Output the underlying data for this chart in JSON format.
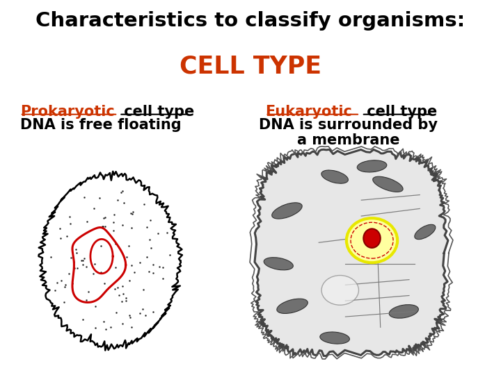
{
  "title_line1": "Characteristics to classify organisms:",
  "title_line2": "CELL TYPE",
  "title_color": "#000000",
  "subtitle_color": "#CC3300",
  "left_heading_orange": "Prokaryotic",
  "left_heading_black": " cell type",
  "left_subtext": "DNA is free floating",
  "right_heading_orange": "Eukaryotic",
  "right_heading_black": " cell type",
  "right_subtext_line1": "DNA is surrounded by",
  "right_subtext_line2": "a membrane",
  "heading_color": "#CC3300",
  "text_color": "#000000",
  "background_color": "#ffffff",
  "title_fontsize": 21,
  "subtitle_fontsize": 25,
  "heading_fontsize": 15,
  "subtext_fontsize": 15
}
